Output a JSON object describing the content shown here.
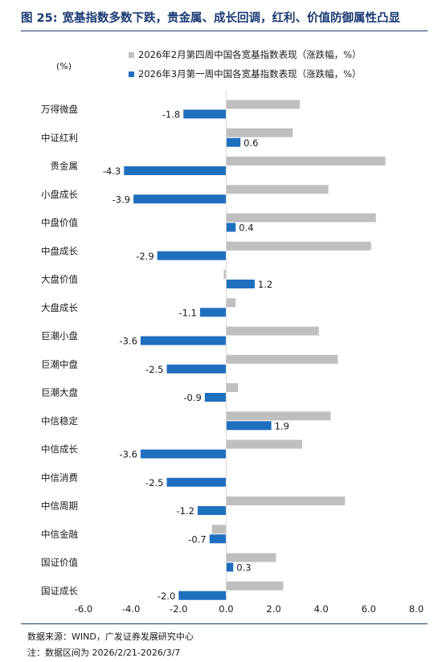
{
  "figure": {
    "number": "图 25:",
    "title": "宽基指数多数下跌，贵金属、成长回调，红利、价值防御属性凸显"
  },
  "unit": "(%)",
  "source": "数据来源：WIND，广发证券发展研究中心",
  "note": "注：数据区间为 2026/2/21-2026/3/7",
  "colors": {
    "prev_week": "#bfbfbf",
    "this_week": "#1f6fbf",
    "title": "#1b3a73"
  },
  "chart_data": {
    "type": "bar",
    "orientation": "horizontal",
    "categories": [
      "万得微盘",
      "中证红利",
      "贵金属",
      "小盘成长",
      "中盘价值",
      "中盘成长",
      "大盘价值",
      "大盘成长",
      "巨潮小盘",
      "巨潮中盘",
      "巨潮大盘",
      "中信稳定",
      "中信成长",
      "中信消费",
      "中信周期",
      "中信金融",
      "国证价值",
      "国证成长"
    ],
    "series": [
      {
        "name": "2026年2月第四周中国各宽基指数表现（涨跌幅，%）",
        "values": [
          3.1,
          2.8,
          6.7,
          4.3,
          6.3,
          6.1,
          -0.1,
          0.4,
          3.9,
          4.7,
          0.5,
          4.4,
          3.2,
          0.0,
          5.0,
          -0.6,
          2.1,
          2.4
        ],
        "show_labels": false
      },
      {
        "name": "2026年3月第一周中国各宽基指数表现（涨跌幅，%）",
        "values": [
          -1.8,
          0.6,
          -4.3,
          -3.9,
          0.4,
          -2.9,
          1.2,
          -1.1,
          -3.6,
          -2.5,
          -0.9,
          1.9,
          -3.6,
          -2.5,
          -1.2,
          -0.7,
          0.3,
          -2.0
        ],
        "labels": [
          "-1.8",
          "0.6",
          "-4.3",
          "-3.9",
          "0.4",
          "-2.9",
          "1.2",
          "-1.1",
          "-3.6",
          "-2.5",
          "-0.9",
          "1.9",
          "-3.6",
          "-2.5",
          "-1.2",
          "-0.7",
          "0.3",
          "-2.0"
        ],
        "show_labels": true
      }
    ],
    "xlim": [
      -6,
      8
    ],
    "xticks": [
      -6,
      -4,
      -2,
      0,
      2,
      4,
      6,
      8
    ],
    "xtick_labels": [
      "-6.0",
      "-4.0",
      "-2.0",
      "0.0",
      "2.0",
      "4.0",
      "6.0",
      "8.0"
    ],
    "grid": false,
    "legend_position": "top"
  }
}
